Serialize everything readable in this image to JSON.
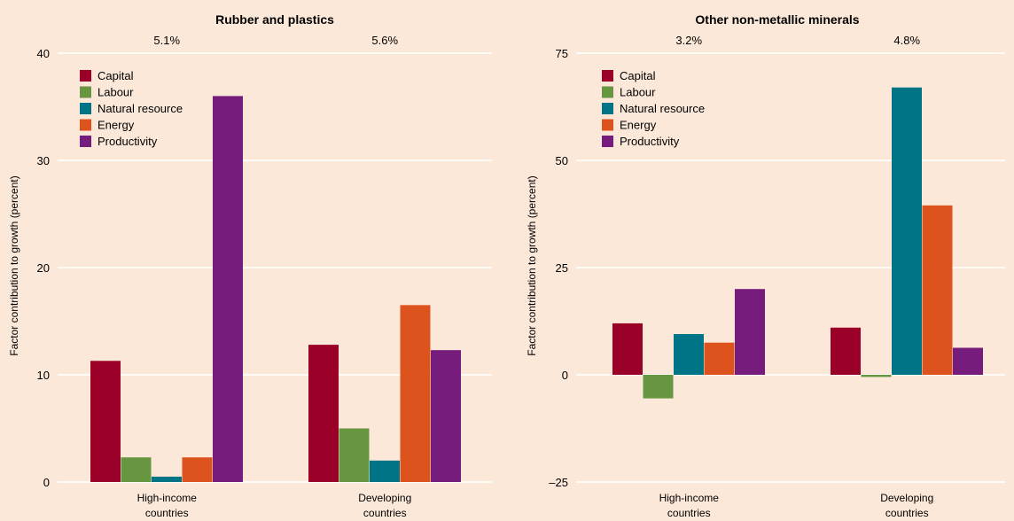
{
  "chart_data": [
    {
      "type": "bar",
      "title": "Rubber and plastics",
      "ylabel": "Factor contribution to growth (percent)",
      "xlabel": "",
      "ylim": [
        0,
        40
      ],
      "yticks": [
        0,
        10,
        20,
        30,
        40
      ],
      "yticks_labels": [
        "0",
        "10",
        "20",
        "30",
        "40"
      ],
      "grid": true,
      "legend_position": "top-left",
      "categories": [
        "High-income countries",
        "Developing countries"
      ],
      "category_lines": [
        [
          "High-income",
          "countries"
        ],
        [
          "Developing",
          "countries"
        ]
      ],
      "annotations": [
        "5.1%",
        "5.6%"
      ],
      "series": [
        {
          "name": "Capital",
          "color": "#9b0029",
          "values": [
            11.3,
            12.8
          ]
        },
        {
          "name": "Labour",
          "color": "#679640",
          "values": [
            2.3,
            5.0
          ]
        },
        {
          "name": "Natural resource",
          "color": "#007487",
          "values": [
            0.5,
            2.0
          ]
        },
        {
          "name": "Energy",
          "color": "#dd531d",
          "values": [
            2.3,
            16.5
          ]
        },
        {
          "name": "Productivity",
          "color": "#751c7c",
          "values": [
            36.0,
            12.3
          ]
        }
      ]
    },
    {
      "type": "bar",
      "title": "Other non-metallic minerals",
      "ylabel": "Factor contribution to growth (percent)",
      "xlabel": "",
      "ylim": [
        -25,
        75
      ],
      "yticks": [
        -25,
        0,
        25,
        50,
        75
      ],
      "yticks_labels": [
        "–25",
        "0",
        "25",
        "50",
        "75"
      ],
      "grid": true,
      "legend_position": "top-left",
      "categories": [
        "High-income countries",
        "Developing countries"
      ],
      "category_lines": [
        [
          "High-income",
          "countries"
        ],
        [
          "Developing",
          "countries"
        ]
      ],
      "annotations": [
        "3.2%",
        "4.8%"
      ],
      "series": [
        {
          "name": "Capital",
          "color": "#9b0029",
          "values": [
            12.0,
            11.0
          ]
        },
        {
          "name": "Labour",
          "color": "#679640",
          "values": [
            -5.5,
            -0.5
          ]
        },
        {
          "name": "Natural resource",
          "color": "#007487",
          "values": [
            9.5,
            67.0
          ]
        },
        {
          "name": "Energy",
          "color": "#dd531d",
          "values": [
            7.5,
            39.5
          ]
        },
        {
          "name": "Productivity",
          "color": "#751c7c",
          "values": [
            20.0,
            6.3
          ]
        }
      ]
    }
  ]
}
